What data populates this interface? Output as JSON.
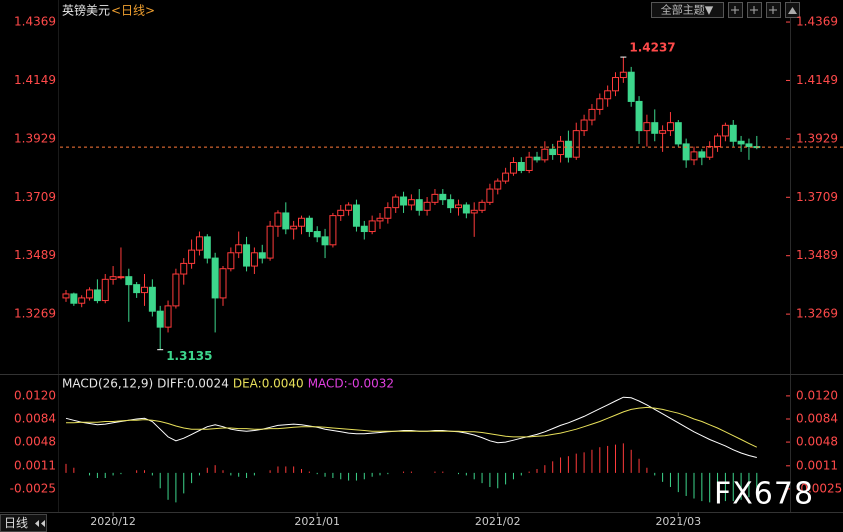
{
  "chart_data": [
    {
      "type": "candlestick",
      "title": "英镑美元",
      "subtitle": "<日线>",
      "up_color": "#ff3b3b",
      "down_color": "#3dd68c",
      "ylim": [
        1.3051,
        1.4452
      ],
      "yticks": [
        1.4369,
        1.4149,
        1.3929,
        1.3709,
        1.3489,
        1.3269
      ],
      "high_label": "1.4237",
      "low_label": "1.3135",
      "categories": [
        null,
        null,
        null,
        null,
        null,
        null,
        "2020/12",
        null,
        null,
        null,
        null,
        null,
        null,
        null,
        null,
        null,
        null,
        null,
        null,
        null,
        null,
        null,
        null,
        null,
        null,
        null,
        null,
        null,
        null,
        null,
        null,
        null,
        "2021/01",
        null,
        null,
        null,
        null,
        null,
        null,
        null,
        null,
        null,
        null,
        null,
        null,
        null,
        null,
        null,
        null,
        null,
        null,
        null,
        null,
        null,
        null,
        "2021/02",
        null,
        null,
        null,
        null,
        null,
        null,
        null,
        null,
        null,
        null,
        null,
        null,
        null,
        null,
        null,
        null,
        null,
        null,
        null,
        null,
        null,
        null,
        "2021/03",
        null,
        null,
        null,
        null,
        null,
        null,
        null,
        null,
        null,
        null
      ],
      "ohlc": [
        [
          1.333,
          1.336,
          1.3315,
          1.3345
        ],
        [
          1.3345,
          1.335,
          1.33,
          1.331
        ],
        [
          1.331,
          1.334,
          1.3295,
          1.333
        ],
        [
          1.333,
          1.337,
          1.332,
          1.336
        ],
        [
          1.336,
          1.34,
          1.331,
          1.332
        ],
        [
          1.332,
          1.342,
          1.331,
          1.34
        ],
        [
          1.34,
          1.345,
          1.338,
          1.341
        ],
        [
          1.341,
          1.352,
          1.34,
          1.341
        ],
        [
          1.341,
          1.344,
          1.324,
          1.338
        ],
        [
          1.338,
          1.339,
          1.333,
          1.335
        ],
        [
          1.335,
          1.342,
          1.33,
          1.337
        ],
        [
          1.337,
          1.34,
          1.326,
          1.328
        ],
        [
          1.328,
          1.33,
          1.3135,
          1.322
        ],
        [
          1.322,
          1.332,
          1.32,
          1.33
        ],
        [
          1.33,
          1.344,
          1.329,
          1.342
        ],
        [
          1.342,
          1.348,
          1.338,
          1.346
        ],
        [
          1.346,
          1.355,
          1.344,
          1.351
        ],
        [
          1.351,
          1.358,
          1.349,
          1.356
        ],
        [
          1.356,
          1.357,
          1.346,
          1.348
        ],
        [
          1.348,
          1.35,
          1.32,
          1.333
        ],
        [
          1.333,
          1.345,
          1.33,
          1.344
        ],
        [
          1.344,
          1.352,
          1.343,
          1.35
        ],
        [
          1.35,
          1.358,
          1.348,
          1.353
        ],
        [
          1.353,
          1.356,
          1.343,
          1.345
        ],
        [
          1.345,
          1.352,
          1.342,
          1.35
        ],
        [
          1.35,
          1.353,
          1.346,
          1.348
        ],
        [
          1.348,
          1.362,
          1.347,
          1.36
        ],
        [
          1.36,
          1.366,
          1.356,
          1.365
        ],
        [
          1.365,
          1.369,
          1.357,
          1.359
        ],
        [
          1.359,
          1.362,
          1.355,
          1.36
        ],
        [
          1.36,
          1.364,
          1.357,
          1.363
        ],
        [
          1.363,
          1.364,
          1.356,
          1.358
        ],
        [
          1.358,
          1.36,
          1.354,
          1.356
        ],
        [
          1.356,
          1.359,
          1.348,
          1.353
        ],
        [
          1.353,
          1.365,
          1.352,
          1.364
        ],
        [
          1.364,
          1.368,
          1.362,
          1.366
        ],
        [
          1.366,
          1.369,
          1.364,
          1.368
        ],
        [
          1.368,
          1.37,
          1.358,
          1.36
        ],
        [
          1.36,
          1.362,
          1.355,
          1.358
        ],
        [
          1.358,
          1.364,
          1.357,
          1.362
        ],
        [
          1.362,
          1.365,
          1.359,
          1.363
        ],
        [
          1.363,
          1.369,
          1.361,
          1.367
        ],
        [
          1.367,
          1.372,
          1.365,
          1.371
        ],
        [
          1.371,
          1.373,
          1.365,
          1.368
        ],
        [
          1.368,
          1.372,
          1.366,
          1.37
        ],
        [
          1.37,
          1.374,
          1.364,
          1.366
        ],
        [
          1.366,
          1.371,
          1.364,
          1.369
        ],
        [
          1.369,
          1.374,
          1.368,
          1.372
        ],
        [
          1.372,
          1.374,
          1.368,
          1.37
        ],
        [
          1.37,
          1.372,
          1.365,
          1.367
        ],
        [
          1.367,
          1.37,
          1.364,
          1.368
        ],
        [
          1.368,
          1.369,
          1.363,
          1.365
        ],
        [
          1.365,
          1.369,
          1.356,
          1.366
        ],
        [
          1.366,
          1.37,
          1.365,
          1.369
        ],
        [
          1.369,
          1.376,
          1.368,
          1.374
        ],
        [
          1.374,
          1.378,
          1.372,
          1.377
        ],
        [
          1.377,
          1.382,
          1.376,
          1.38
        ],
        [
          1.38,
          1.386,
          1.379,
          1.384
        ],
        [
          1.384,
          1.386,
          1.38,
          1.381
        ],
        [
          1.381,
          1.388,
          1.38,
          1.386
        ],
        [
          1.386,
          1.388,
          1.384,
          1.385
        ],
        [
          1.385,
          1.392,
          1.384,
          1.389
        ],
        [
          1.389,
          1.391,
          1.385,
          1.387
        ],
        [
          1.387,
          1.394,
          1.384,
          1.392
        ],
        [
          1.392,
          1.396,
          1.384,
          1.386
        ],
        [
          1.386,
          1.399,
          1.385,
          1.396
        ],
        [
          1.396,
          1.402,
          1.394,
          1.4
        ],
        [
          1.4,
          1.406,
          1.398,
          1.404
        ],
        [
          1.404,
          1.41,
          1.402,
          1.408
        ],
        [
          1.408,
          1.413,
          1.405,
          1.411
        ],
        [
          1.411,
          1.418,
          1.409,
          1.416
        ],
        [
          1.416,
          1.4237,
          1.414,
          1.418
        ],
        [
          1.418,
          1.42,
          1.405,
          1.407
        ],
        [
          1.407,
          1.409,
          1.391,
          1.396
        ],
        [
          1.396,
          1.402,
          1.39,
          1.399
        ],
        [
          1.399,
          1.404,
          1.392,
          1.395
        ],
        [
          1.395,
          1.398,
          1.388,
          1.396
        ],
        [
          1.396,
          1.403,
          1.394,
          1.399
        ],
        [
          1.399,
          1.4,
          1.39,
          1.391
        ],
        [
          1.391,
          1.393,
          1.382,
          1.385
        ],
        [
          1.385,
          1.39,
          1.383,
          1.388
        ],
        [
          1.388,
          1.389,
          1.383,
          1.386
        ],
        [
          1.386,
          1.392,
          1.385,
          1.39
        ],
        [
          1.39,
          1.395,
          1.388,
          1.394
        ],
        [
          1.394,
          1.399,
          1.392,
          1.398
        ],
        [
          1.398,
          1.4,
          1.39,
          1.392
        ],
        [
          1.392,
          1.394,
          1.388,
          1.391
        ],
        [
          1.391,
          1.393,
          1.385,
          1.39
        ],
        [
          1.39,
          1.394,
          1.389,
          1.3898
        ]
      ]
    },
    {
      "type": "macd",
      "legend": [
        "MACD(26,12,9)",
        "DIFF:0.0024",
        "DEA:0.0040",
        "MACD:-0.0032"
      ],
      "ylim": [
        -0.0061,
        0.0151
      ],
      "yticks": [
        {
          "value": 0.012,
          "label": "0.0120"
        },
        0.0084,
        0.0048,
        0.0011,
        -0.0025
      ],
      "series": [
        {
          "name": "DIFF",
          "color": "#ffffff",
          "values": [
            0.0085,
            0.0082,
            0.0079,
            0.0077,
            0.0075,
            0.0076,
            0.0078,
            0.008,
            0.0082,
            0.0084,
            0.0085,
            0.008,
            0.0068,
            0.0056,
            0.005,
            0.0054,
            0.006,
            0.0066,
            0.0072,
            0.0075,
            0.0072,
            0.0068,
            0.0066,
            0.0065,
            0.0066,
            0.0068,
            0.0071,
            0.0074,
            0.0075,
            0.0076,
            0.0075,
            0.0073,
            0.0071,
            0.0068,
            0.0066,
            0.0064,
            0.0062,
            0.0061,
            0.0061,
            0.0062,
            0.0063,
            0.0064,
            0.0065,
            0.0066,
            0.0066,
            0.0065,
            0.0065,
            0.0066,
            0.0066,
            0.0065,
            0.0064,
            0.0062,
            0.0059,
            0.0055,
            0.005,
            0.0047,
            0.0048,
            0.0051,
            0.0054,
            0.0057,
            0.006,
            0.0064,
            0.0069,
            0.0074,
            0.0078,
            0.0083,
            0.0088,
            0.0094,
            0.01,
            0.0106,
            0.0112,
            0.0118,
            0.0117,
            0.0112,
            0.0106,
            0.0099,
            0.0092,
            0.0085,
            0.0078,
            0.0071,
            0.0064,
            0.0058,
            0.0052,
            0.0047,
            0.0042,
            0.0036,
            0.0031,
            0.0027,
            0.0024
          ]
        },
        {
          "name": "DEA",
          "color": "#e8e05a",
          "values": [
            0.0078,
            0.0078,
            0.0079,
            0.0079,
            0.0079,
            0.008,
            0.008,
            0.0081,
            0.0082,
            0.0082,
            0.0083,
            0.0082,
            0.008,
            0.0077,
            0.0073,
            0.007,
            0.0068,
            0.0068,
            0.0068,
            0.0069,
            0.007,
            0.007,
            0.0069,
            0.0069,
            0.0068,
            0.0068,
            0.0069,
            0.0069,
            0.007,
            0.0071,
            0.0072,
            0.0072,
            0.0072,
            0.0071,
            0.007,
            0.0069,
            0.0068,
            0.0067,
            0.0066,
            0.0065,
            0.0065,
            0.0065,
            0.0065,
            0.0065,
            0.0065,
            0.0065,
            0.0065,
            0.0065,
            0.0065,
            0.0065,
            0.0065,
            0.0064,
            0.0064,
            0.0063,
            0.0061,
            0.0059,
            0.0057,
            0.0056,
            0.0056,
            0.0056,
            0.0057,
            0.0058,
            0.006,
            0.0062,
            0.0065,
            0.0068,
            0.0072,
            0.0076,
            0.008,
            0.0085,
            0.009,
            0.0095,
            0.0099,
            0.0101,
            0.0102,
            0.0101,
            0.0099,
            0.0096,
            0.0093,
            0.0089,
            0.0084,
            0.008,
            0.0075,
            0.007,
            0.0064,
            0.0058,
            0.0052,
            0.0046,
            0.004
          ]
        },
        {
          "name": "MACD",
          "type": "histogram",
          "up_color": "#ff3b3b",
          "down_color": "#3dd68c",
          "values": [
            0.0014,
            0.0008,
            0,
            -0.0004,
            -0.0008,
            -0.0008,
            -0.0004,
            -0.0002,
            0,
            0.0004,
            0.0004,
            -0.0004,
            -0.0024,
            -0.0042,
            -0.0046,
            -0.0032,
            -0.0016,
            -0.0004,
            0.0008,
            0.0012,
            0.0004,
            -0.0004,
            -0.0006,
            -0.0008,
            -0.0004,
            0,
            0.0004,
            0.001,
            0.001,
            0.001,
            0.0006,
            0.0002,
            -0.0002,
            -0.0006,
            -0.0008,
            -0.001,
            -0.0012,
            -0.0012,
            -0.001,
            -0.0006,
            -0.0004,
            -0.0002,
            0,
            0.0002,
            0.0002,
            0,
            0,
            0.0002,
            0.0002,
            0,
            -0.0002,
            -0.0004,
            -0.001,
            -0.0016,
            -0.0022,
            -0.0024,
            -0.0018,
            -0.001,
            -0.0004,
            0.0002,
            0.0006,
            0.0012,
            0.0018,
            0.0024,
            0.0026,
            0.003,
            0.0032,
            0.0036,
            0.004,
            0.0042,
            0.0044,
            0.0046,
            0.0036,
            0.0022,
            0.0008,
            -0.0004,
            -0.0014,
            -0.0022,
            -0.003,
            -0.0036,
            -0.004,
            -0.0044,
            -0.0046,
            -0.0046,
            -0.0044,
            -0.0044,
            -0.0042,
            -0.0038,
            -0.0032
          ]
        }
      ]
    }
  ],
  "toolbar": {
    "theme_button": "全部主题▼",
    "period_button": "日线"
  },
  "watermark": "FX678"
}
